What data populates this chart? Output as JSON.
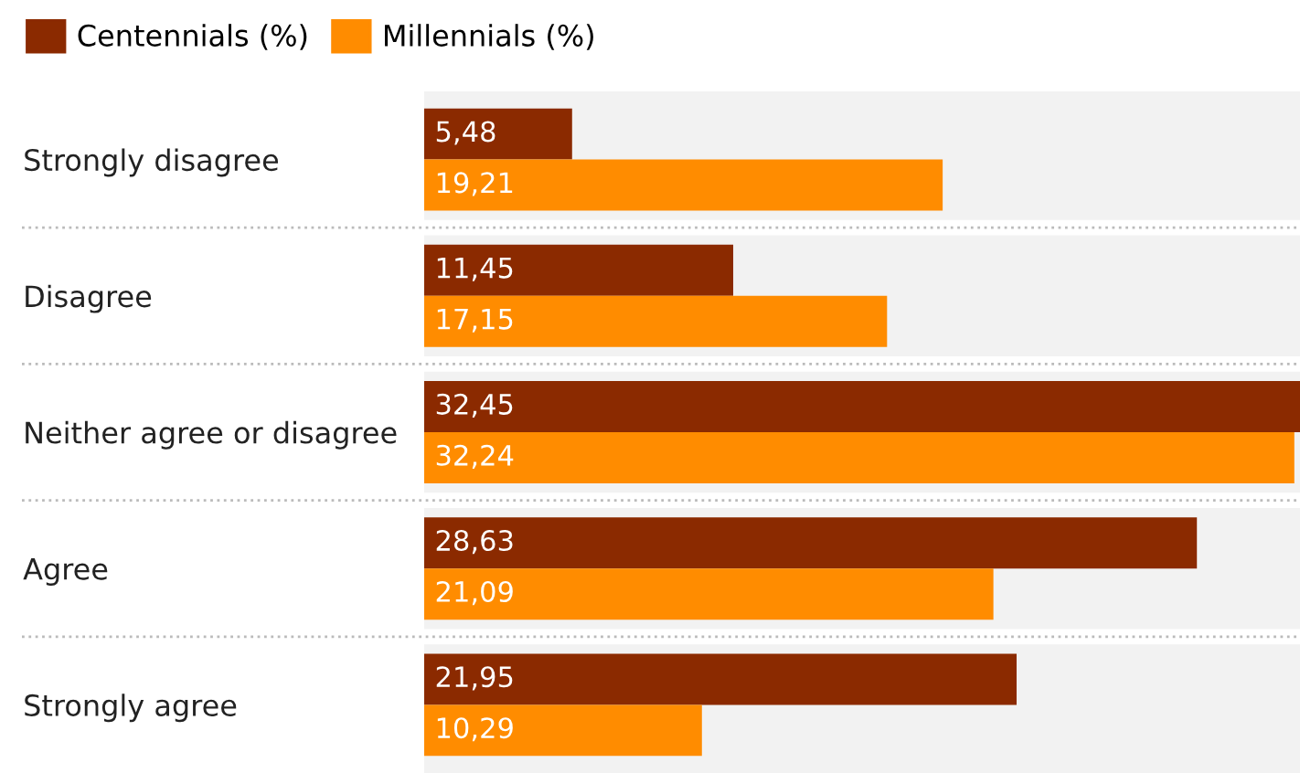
{
  "chart_data": {
    "type": "bar",
    "orientation": "horizontal",
    "categories": [
      "Strongly disagree",
      "Disagree",
      "Neither agree or disagree",
      "Agree",
      "Strongly agree"
    ],
    "series": [
      {
        "name": "Centennials (%)",
        "color": "#8b2a00",
        "values": [
          5.48,
          11.45,
          32.45,
          28.63,
          21.95
        ],
        "value_labels": [
          "5,48",
          "11,45",
          "32,45",
          "28,63",
          "21,95"
        ]
      },
      {
        "name": "Millennials (%)",
        "color": "#ff8c00",
        "values": [
          19.21,
          17.15,
          32.24,
          21.09,
          10.29
        ],
        "value_labels": [
          "19,21",
          "17,15",
          "32,24",
          "21,09",
          "10,29"
        ]
      }
    ],
    "legend": "top left",
    "grid": false
  }
}
